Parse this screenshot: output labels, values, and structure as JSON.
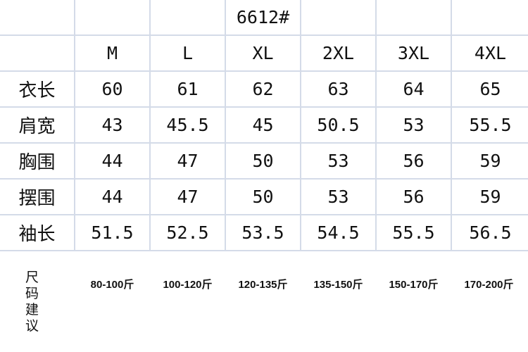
{
  "title": "6612#",
  "sizes": [
    "M",
    "L",
    "XL",
    "2XL",
    "3XL",
    "4XL"
  ],
  "rows": [
    {
      "label": "衣长",
      "values": [
        "60",
        "61",
        "62",
        "63",
        "64",
        "65"
      ]
    },
    {
      "label": "肩宽",
      "values": [
        "43",
        "45.5",
        "45",
        "50.5",
        "53",
        "55.5"
      ]
    },
    {
      "label": "胸围",
      "values": [
        "44",
        "47",
        "50",
        "53",
        "56",
        "59"
      ]
    },
    {
      "label": "摆围",
      "values": [
        "44",
        "47",
        "50",
        "53",
        "56",
        "59"
      ]
    },
    {
      "label": "袖长",
      "values": [
        "51.5",
        "52.5",
        "53.5",
        "54.5",
        "55.5",
        "56.5"
      ]
    }
  ],
  "recommendation": {
    "label": "尺码建议",
    "values": [
      "80-100斤",
      "100-120斤",
      "120-135斤",
      "135-150斤",
      "150-170斤",
      "170-200斤"
    ]
  }
}
